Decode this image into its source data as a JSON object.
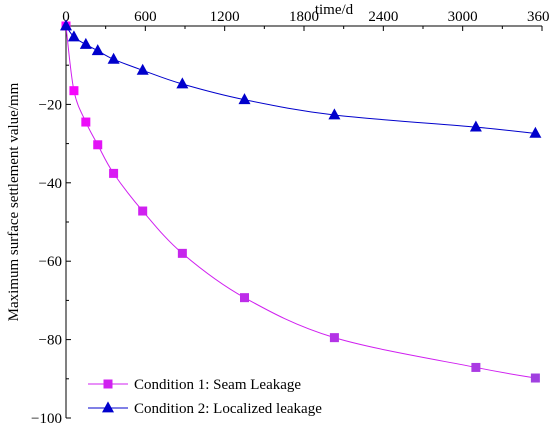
{
  "chart_data": {
    "type": "line",
    "xlabel": "time/d",
    "ylabel": "Maximum surface settlement value/mm",
    "xlim": [
      0,
      3600
    ],
    "ylim": [
      -100,
      0
    ],
    "x_ticks": [
      0,
      600,
      1200,
      1800,
      2400,
      3000,
      3600
    ],
    "y_ticks": [
      -20,
      -40,
      -60,
      -80,
      -100
    ],
    "x_axis_position": "top",
    "grid": false,
    "legend_position": "bottom-left",
    "series": [
      {
        "name": "Condition 1: Seam Leakage",
        "color": "#ff00ff",
        "color_end": "#a040e0",
        "marker": "square",
        "x": [
          0,
          60,
          150,
          240,
          360,
          580,
          880,
          1350,
          2030,
          3100,
          3550
        ],
        "y": [
          0,
          -16.5,
          -24.5,
          -30.3,
          -37.6,
          -47.2,
          -58.0,
          -69.3,
          -79.5,
          -87.1,
          -89.8
        ]
      },
      {
        "name": "Condition 2: Localized leakage",
        "color": "#0000cc",
        "marker": "triangle",
        "x": [
          0,
          60,
          150,
          240,
          360,
          580,
          880,
          1350,
          2030,
          3100,
          3550
        ],
        "y": [
          0,
          -2.8,
          -4.7,
          -6.3,
          -8.5,
          -11.3,
          -14.8,
          -18.8,
          -22.7,
          -25.8,
          -27.4
        ]
      }
    ]
  }
}
